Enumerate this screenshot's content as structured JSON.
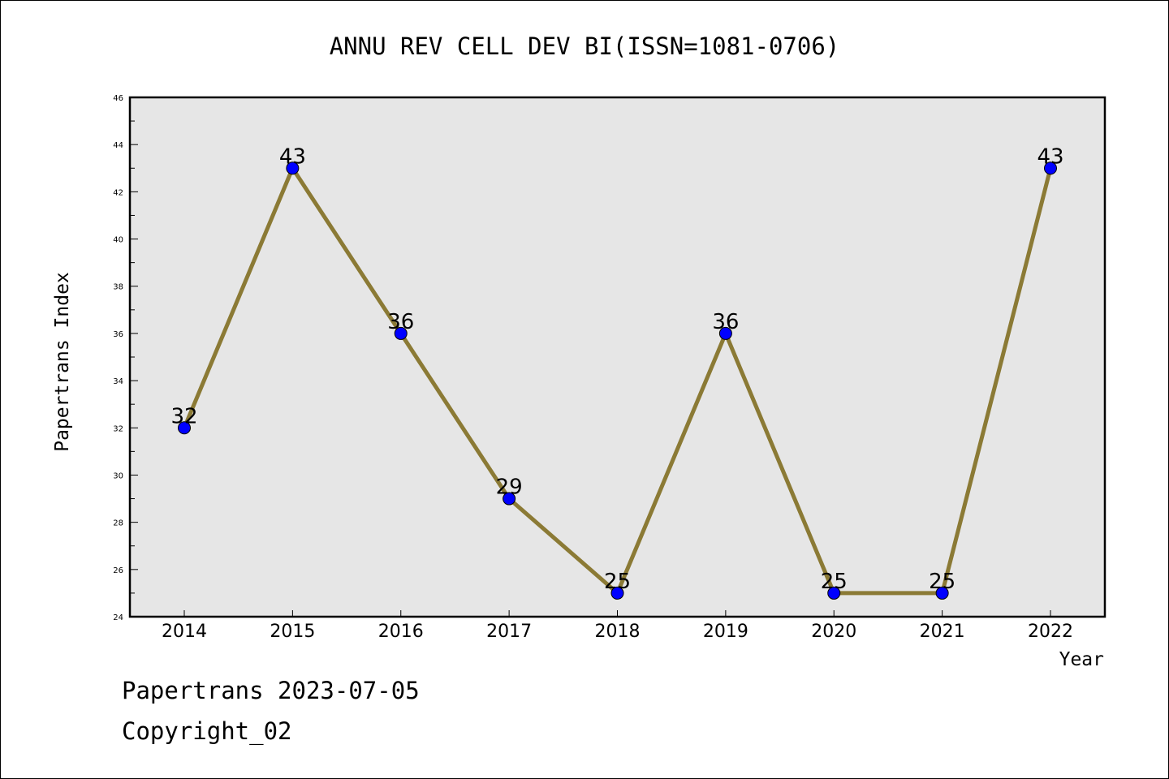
{
  "chart_data": {
    "type": "line",
    "title": "ANNU REV CELL DEV BI(ISSN=1081-0706)",
    "xlabel": "Year",
    "ylabel": "Papertrans Index",
    "categories": [
      "2014",
      "2015",
      "2016",
      "2017",
      "2018",
      "2019",
      "2020",
      "2021",
      "2022"
    ],
    "values": [
      32,
      43,
      36,
      29,
      25,
      36,
      25,
      25,
      43
    ],
    "data_labels": [
      "32",
      "43",
      "36",
      "29",
      "25",
      "36",
      "25",
      "25",
      "43"
    ],
    "ylim": [
      24,
      46
    ],
    "yticks": [
      "24",
      "26",
      "28",
      "30",
      "32",
      "34",
      "36",
      "38",
      "40",
      "42",
      "44",
      "46"
    ],
    "grid": false,
    "colors": {
      "line": "#8b7a35",
      "marker": "#0000ff",
      "plot_background": "#e6e6e6"
    }
  },
  "footer": {
    "line1": "Papertrans 2023-07-05",
    "line2": "Copyright_02"
  }
}
